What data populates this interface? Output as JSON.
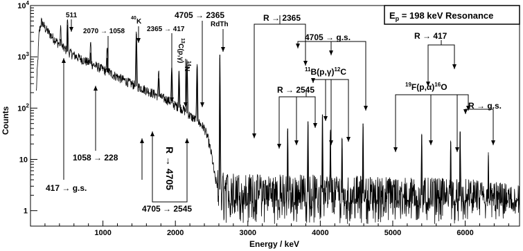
{
  "chart_data": {
    "type": "line",
    "title": "E_p = 198 keV Resonance",
    "xlabel": "Energy / keV",
    "ylabel": "Counts",
    "xlim": [
      0,
      6750
    ],
    "ylim": [
      0.5,
      10000
    ],
    "yscale": "log",
    "grid": false,
    "line_color": "#000000",
    "x_ticks": [
      {
        "value": 1000,
        "label": "1000"
      },
      {
        "value": 2000,
        "label": "2000"
      },
      {
        "value": 3000,
        "label": "3000"
      },
      {
        "value": 4000,
        "label": "4000"
      },
      {
        "value": 5000,
        "label": "5000"
      },
      {
        "value": 6000,
        "label": "6000"
      }
    ],
    "y_ticks": [
      {
        "value": 1,
        "label": "1"
      },
      {
        "value": 10,
        "label": "10"
      },
      {
        "value": 100,
        "label": "10",
        "sup": "2"
      },
      {
        "value": 1000,
        "label": "10",
        "sup": "3"
      },
      {
        "value": 10000,
        "label": "10",
        "sup": "4"
      }
    ],
    "spectrum": {
      "continuum": [
        [
          80,
          200
        ],
        [
          120,
          3000
        ],
        [
          150,
          4800
        ],
        [
          200,
          3600
        ],
        [
          300,
          2400
        ],
        [
          400,
          1700
        ],
        [
          500,
          1300
        ],
        [
          600,
          1050
        ],
        [
          800,
          760
        ],
        [
          1000,
          560
        ],
        [
          1200,
          400
        ],
        [
          1400,
          290
        ],
        [
          1600,
          220
        ],
        [
          1800,
          160
        ],
        [
          1900,
          140
        ],
        [
          2000,
          110
        ],
        [
          2100,
          95
        ],
        [
          2200,
          70
        ],
        [
          2300,
          55
        ],
        [
          2400,
          40
        ],
        [
          2450,
          25
        ],
        [
          2500,
          12
        ],
        [
          2550,
          4
        ],
        [
          2600,
          2.6
        ],
        [
          3000,
          2.4
        ],
        [
          4000,
          2.3
        ],
        [
          5000,
          2.1
        ],
        [
          6000,
          1.9
        ],
        [
          6750,
          1.5
        ]
      ],
      "peaks": [
        {
          "energy": 417,
          "counts": 2200
        },
        {
          "energy": 511,
          "counts": 4200
        },
        {
          "energy": 830,
          "counts": 1200
        },
        {
          "energy": 1058,
          "counts": 950
        },
        {
          "energy": 1461,
          "counts": 2800
        },
        {
          "energy": 1770,
          "counts": 380
        },
        {
          "energy": 1950,
          "counts": 500
        },
        {
          "energy": 2050,
          "counts": 450
        },
        {
          "energy": 2160,
          "counts": 800
        },
        {
          "energy": 2300,
          "counts": 650
        },
        {
          "energy": 2614,
          "counts": 1100
        },
        {
          "energy": 3550,
          "counts": 40
        },
        {
          "energy": 3830,
          "counts": 55
        },
        {
          "energy": 4030,
          "counts": 75
        },
        {
          "energy": 4140,
          "counts": 35
        },
        {
          "energy": 4300,
          "counts": 25
        },
        {
          "energy": 4590,
          "counts": 50
        },
        {
          "energy": 5400,
          "counts": 30
        },
        {
          "energy": 5800,
          "counts": 22
        },
        {
          "energy": 5930,
          "counts": 35
        },
        {
          "energy": 6320,
          "counts": 12
        }
      ]
    },
    "annotations": {
      "label_511": "511",
      "label_2070": "2070 → 1058",
      "label_40k_sup": "40",
      "label_40k": "K",
      "label_2365_417": "2365 → 417",
      "label_13c_sup": "13",
      "label_13c": "C(p,γ)",
      "label_14n_sup": "14",
      "label_14n": "N",
      "label_4705_2365": "4705 → 2365",
      "label_rdth": "RdTh",
      "label_r_2365": "R → 2365",
      "label_4705_gs": "4705 → g.s.",
      "label_11b_sup": "11",
      "label_11b": "B(p,γ)",
      "label_12c_sup": "12",
      "label_12c": "C",
      "label_r_417": "R → 417",
      "label_r_2545": "R → 2545",
      "label_19f_sup": "19",
      "label_19f": "F(p,α)",
      "label_16o_sup": "16",
      "label_16o": "O",
      "label_r_gs": "R → g.s.",
      "label_417_gs": "417 → g.s.",
      "label_1058_228": "1058 → 228",
      "label_r_4705": "R → 4705",
      "label_4705_2545": "4705 → 2545",
      "title_main": "E",
      "title_sub": "p",
      "title_rest": " = 198 keV Resonance"
    }
  }
}
